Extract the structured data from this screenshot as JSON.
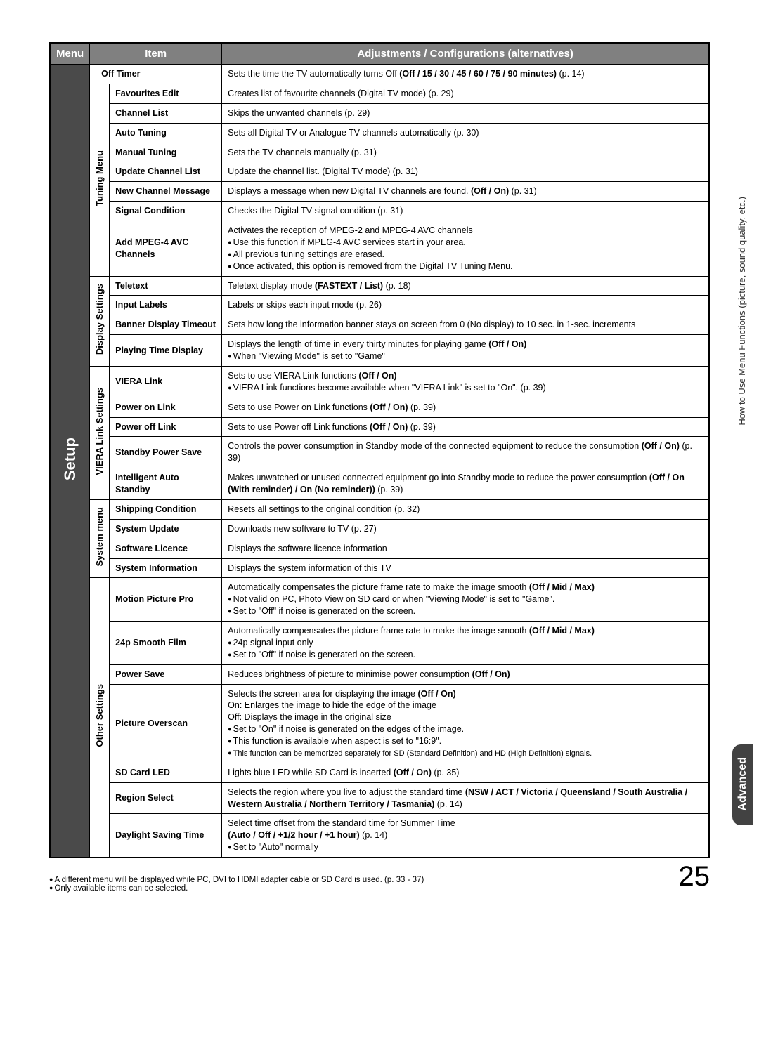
{
  "colors": {
    "header_bg": "#808080",
    "menu_bg": "#4a4a4a",
    "tab_bg": "#424242",
    "border": "#000000",
    "text_light": "#ffffff"
  },
  "table_header": {
    "menu": "Menu",
    "item": "Item",
    "adj": "Adjustments / Configurations (alternatives)"
  },
  "menu_label": "Setup",
  "groups": {
    "tuning": "Tuning Menu",
    "display": "Display Settings",
    "viera": "VIERA Link Settings",
    "system": "System menu",
    "other": "Other Settings"
  },
  "rows": {
    "off_timer": {
      "item": "Off Timer",
      "desc_a": "Sets the time the TV automatically turns Off ",
      "desc_b": "(Off / 15 / 30 / 45 / 60 / 75 / 90 minutes)",
      "desc_c": " (p. 14)"
    },
    "fav_edit": {
      "item": "Favourites Edit",
      "desc": "Creates list of favourite channels (Digital TV mode) (p. 29)"
    },
    "ch_list": {
      "item": "Channel List",
      "desc": "Skips the unwanted channels (p. 29)"
    },
    "auto_tune": {
      "item": "Auto Tuning",
      "desc": "Sets all Digital TV or Analogue TV channels automatically (p. 30)"
    },
    "man_tune": {
      "item": "Manual Tuning",
      "desc": "Sets the TV channels manually (p. 31)"
    },
    "upd_ch": {
      "item": "Update Channel List",
      "desc": "Update the channel list. (Digital TV mode) (p. 31)"
    },
    "new_ch": {
      "item": "New Channel Message",
      "desc_a": "Displays a message when new Digital TV channels are found. ",
      "desc_b": "(Off / On)",
      "desc_c": " (p. 31)"
    },
    "sig_cond": {
      "item": "Signal Condition",
      "desc": "Checks the Digital TV signal condition (p. 31)"
    },
    "add_mpeg": {
      "item": "Add MPEG-4 AVC Channels",
      "l1": "Activates the reception of MPEG-2 and MPEG-4 AVC channels",
      "l2": "Use this function if MPEG-4 AVC services start in your area.",
      "l3": "All previous tuning settings are erased.",
      "l4": "Once activated, this option is removed from the Digital TV Tuning Menu."
    },
    "teletext": {
      "item": "Teletext",
      "desc_a": "Teletext display mode ",
      "desc_b": "(FASTEXT / List)",
      "desc_c": " (p. 18)"
    },
    "input_lbl": {
      "item": "Input Labels",
      "desc": "Labels or skips each input mode (p. 26)"
    },
    "banner": {
      "item": "Banner Display Timeout",
      "desc": "Sets how long the information banner stays on screen from 0 (No display) to 10 sec. in 1-sec. increments"
    },
    "play_time": {
      "item": "Playing Time Display",
      "l1a": "Displays the length of time in every thirty minutes for playing game ",
      "l1b": "(Off / On)",
      "l2": "When \"Viewing Mode\" is set to \"Game\""
    },
    "viera_link": {
      "item": "VIERA Link",
      "l1a": "Sets to use VIERA Link functions ",
      "l1b": "(Off / On)",
      "l2": "VIERA Link functions become available when \"VIERA Link\" is set to \"On\". (p. 39)"
    },
    "pwr_on": {
      "item": "Power on Link",
      "desc_a": "Sets to use Power on Link functions ",
      "desc_b": "(Off / On)",
      "desc_c": " (p. 39)"
    },
    "pwr_off": {
      "item": "Power off Link",
      "desc_a": "Sets to use Power off Link functions ",
      "desc_b": "(Off / On)",
      "desc_c": " (p. 39)"
    },
    "standby_ps": {
      "item": "Standby Power Save",
      "l1": "Controls the power consumption in Standby mode of the connected equipment to reduce the consumption ",
      "l1b": "(Off / On)",
      "l1c": " (p. 39)"
    },
    "intel_auto": {
      "item": "Intelligent Auto Standby",
      "l1": "Makes unwatched or unused connected equipment go into Standby mode to reduce the power consumption ",
      "l1b": "(Off / On (With reminder) / On (No reminder))",
      "l1c": " (p. 39)"
    },
    "ship_cond": {
      "item": "Shipping Condition",
      "desc": "Resets all settings to the original condition (p. 32)"
    },
    "sys_upd": {
      "item": "System Update",
      "desc": "Downloads new software to TV (p. 27)"
    },
    "soft_lic": {
      "item": "Software Licence",
      "desc": "Displays the software licence information"
    },
    "sys_info": {
      "item": "System Information",
      "desc": "Displays the system information of this TV"
    },
    "motion": {
      "item": "Motion Picture Pro",
      "l1a": "Automatically compensates the picture frame rate to make the image smooth ",
      "l1b": "(Off / Mid / Max)",
      "l2": "Not valid on PC, Photo View on SD card or when \"Viewing Mode\" is set to \"Game\".",
      "l3": "Set to \"Off\" if noise is generated on the screen."
    },
    "smooth24": {
      "item": "24p Smooth Film",
      "l1a": "Automatically compensates the picture frame rate to make the image smooth ",
      "l1b": "(Off / Mid / Max)",
      "l2": "24p signal input only",
      "l3": "Set to \"Off\" if noise is generated on the screen."
    },
    "pwr_save": {
      "item": "Power Save",
      "desc_a": "Reduces brightness of picture to minimise power consumption ",
      "desc_b": "(Off / On)"
    },
    "overscan": {
      "item": "Picture Overscan",
      "l1a": "Selects the screen area for displaying the image ",
      "l1b": "(Off / On)",
      "l2": "On: Enlarges the image to hide the edge of the image",
      "l3": "Off: Displays the image in the original size",
      "l4": "Set to \"On\" if noise is generated on the edges of the image.",
      "l5": "This function is available when aspect is set to \"16:9\".",
      "l6": "This function can be memorized separately for SD (Standard Definition) and HD (High Definition) signals."
    },
    "sd_led": {
      "item": "SD Card LED",
      "desc_a": "Lights blue LED while SD Card is inserted ",
      "desc_b": "(Off / On)",
      "desc_c": " (p. 35)"
    },
    "region": {
      "item": "Region Select",
      "l1": "Selects the region where you live to adjust the standard time ",
      "l1b": "(NSW / ACT / Victoria / Queensland / South Australia / Western Australia / Northern Territory / Tasmania)",
      "l1c": " (p. 14)"
    },
    "dst": {
      "item": "Daylight Saving Time",
      "l1": "Select time offset from the standard time for Summer Time",
      "l2": "(Auto / Off / +1/2 hour / +1 hour)",
      "l2b": " (p. 14)",
      "l3": "Set to \"Auto\" normally"
    }
  },
  "side_gray": "How to Use Menu Functions (picture, sound quality, etc.)",
  "side_dark": "Advanced",
  "footer_l1": "A different menu will be displayed while PC, DVI to HDMI adapter cable or SD Card is used. (p. 33 - 37)",
  "footer_l2": "Only available items can be selected.",
  "page_number": "25"
}
